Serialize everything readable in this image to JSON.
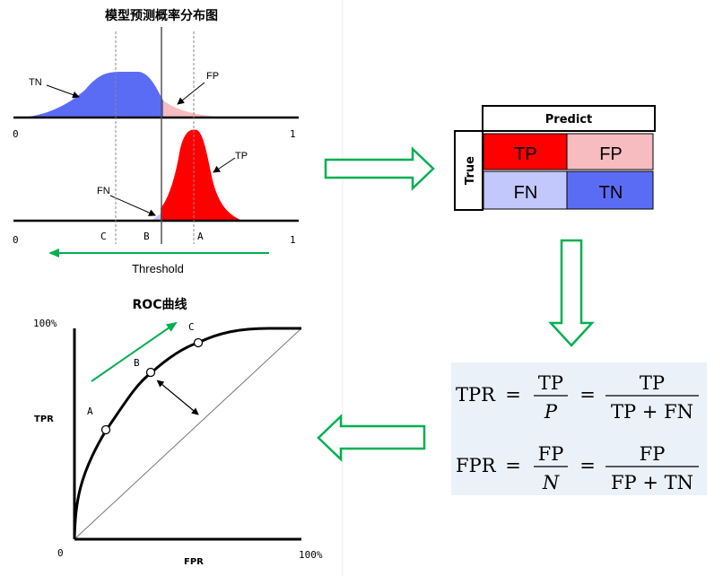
{
  "distribution": {
    "title": "模型预测概率分布图",
    "negative_label": "TN",
    "fp_label": "FP",
    "positive_label": "TP",
    "fn_label": "FN",
    "axis_top": {
      "start": "0",
      "end": "1"
    },
    "axis_bottom": {
      "start": "0",
      "end": "1"
    },
    "thresholds": [
      "C",
      "B",
      "A"
    ],
    "threshold_label": "Threshold"
  },
  "confusion": {
    "column_header": "Predict",
    "row_header": "True",
    "cells": [
      "TP",
      "FP",
      "FN",
      "TN"
    ]
  },
  "formulas": {
    "tpr": {
      "lhs": "TPR",
      "eq": "=",
      "num1": "TP",
      "den1": "P",
      "eq2": "=",
      "num2": "TP",
      "den2": "TP + FN"
    },
    "fpr": {
      "lhs": "FPR",
      "eq": "=",
      "num1": "FP",
      "den1": "N",
      "eq2": "=",
      "num2": "FP",
      "den2": "FP + TN"
    }
  },
  "roc": {
    "title": "ROC曲线",
    "y_max": "100%",
    "x_max": "100%",
    "origin": "0",
    "ylabel": "TPR",
    "xlabel": "FPR",
    "points": [
      "A",
      "B",
      "C"
    ]
  },
  "colors": {
    "tn_fill": "#5b6cf4",
    "fp_fill": "#f7bcbf",
    "tp_fill": "#ff0000",
    "fn_fill": "#c2c8fb",
    "arrow_green": "#00b050",
    "formula_bg": "#ebf1f8"
  }
}
